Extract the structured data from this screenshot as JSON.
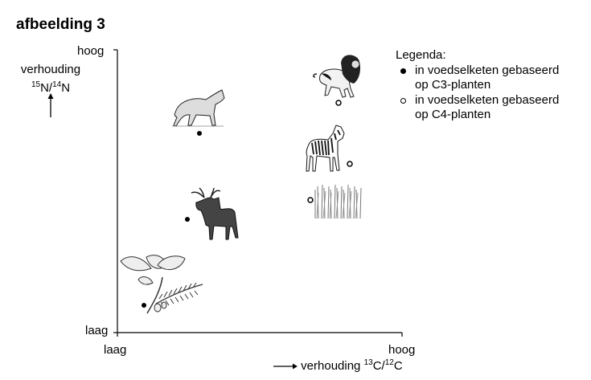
{
  "title": "afbeelding 3",
  "y_axis": {
    "label_text": "verhouding",
    "label_ratio": {
      "num_sup": "15",
      "num": "N/",
      "den_sup": "14",
      "den": "N"
    },
    "high": "hoog",
    "low": "laag"
  },
  "x_axis": {
    "low": "laag",
    "high": "hoog",
    "label_text": "verhouding",
    "label_ratio": {
      "num_sup": "13",
      "num": "C/",
      "den_sup": "12",
      "den": "C"
    }
  },
  "legend": {
    "title": "Legenda:",
    "items": [
      {
        "symbol": "filled-dot",
        "line1": "in voedselketen gebaseerd",
        "line2": "op C3-planten"
      },
      {
        "symbol": "open-dot",
        "line1": "in voedselketen gebaseerd",
        "line2": "op C4-planten"
      }
    ]
  },
  "organisms": [
    {
      "name": "wolf",
      "chain": "C3"
    },
    {
      "name": "moose",
      "chain": "C3"
    },
    {
      "name": "leaves-plant",
      "chain": "C3"
    },
    {
      "name": "lion",
      "chain": "C4"
    },
    {
      "name": "zebra",
      "chain": "C4"
    },
    {
      "name": "grass",
      "chain": "C4"
    }
  ]
}
